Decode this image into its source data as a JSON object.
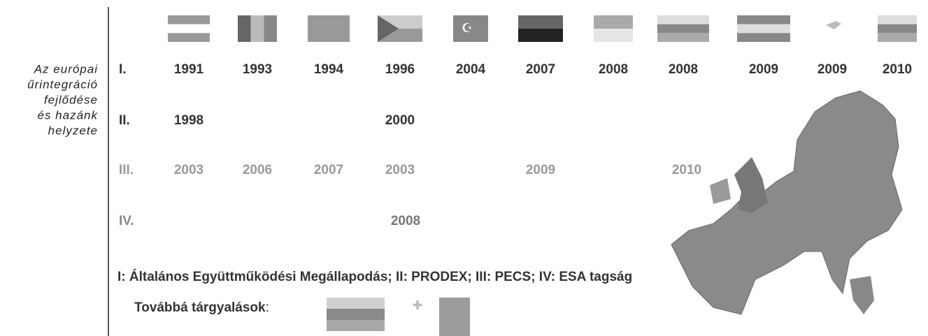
{
  "side_caption": [
    "Az európai",
    "űrintegráció",
    "fejlődése",
    "és hazánk",
    "helyzete"
  ],
  "rows": [
    {
      "label": "I.",
      "years": [
        "1991",
        "1993",
        "1994",
        "1996",
        "2004",
        "2007",
        "2008",
        "2008",
        "2009",
        "2009",
        "2010"
      ]
    },
    {
      "label": "II.",
      "years": [
        "1998",
        null,
        null,
        "2000",
        null,
        null,
        null,
        null,
        null,
        null,
        null
      ]
    },
    {
      "label": "III.",
      "years": [
        "2003",
        "2006",
        "2007",
        "2003",
        null,
        "2009",
        null,
        "2010",
        null,
        null,
        null
      ]
    },
    {
      "label": "IV.",
      "years": [
        null,
        null,
        null,
        "2008",
        null,
        null,
        null,
        null,
        null,
        null,
        null
      ]
    }
  ],
  "legend": "I: Általános Együttműködési Megállapodás; II: PRODEX; III: PECS; IV: ESA tagság",
  "further": {
    "text": "Továbbá tárgyalások",
    "colon": ":"
  }
}
